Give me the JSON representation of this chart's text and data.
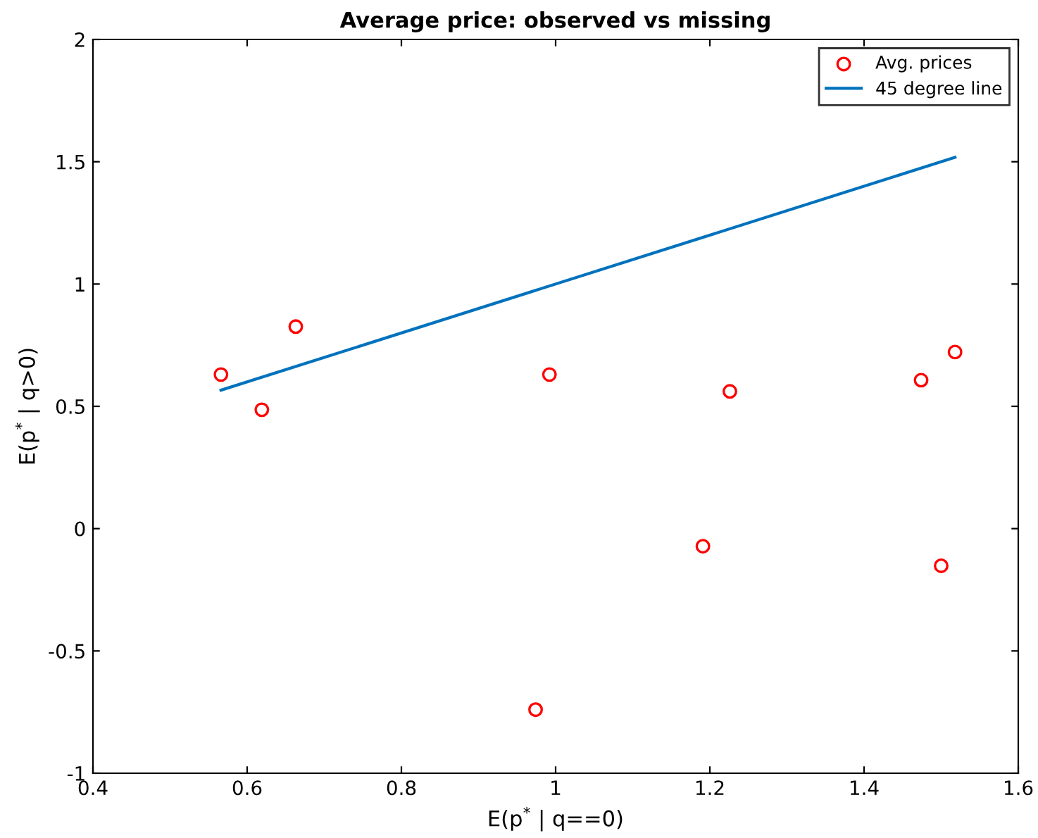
{
  "chart_data": {
    "type": "scatter",
    "title": "Average price: observed vs missing",
    "xlabel": "E(p$^{*}$ | q==0)",
    "ylabel": "E(p$^{*}$ | q>0)",
    "series": [
      {
        "name": "Avg. prices",
        "color": "#ff0000",
        "marker": "circle",
        "x": [
          0.566,
          0.619,
          0.663,
          0.992,
          1.226,
          1.474,
          1.518,
          1.191,
          1.5,
          0.974
        ],
        "values": [
          0.63,
          0.486,
          0.826,
          0.63,
          0.561,
          0.607,
          0.722,
          -0.072,
          -0.152,
          -0.74
        ]
      },
      {
        "name": "45 degree line",
        "type": "line",
        "color": "#0072bd",
        "x": [
          0.566,
          1.518
        ],
        "values": [
          0.566,
          1.518
        ]
      }
    ],
    "xlim": [
      0.4,
      1.6
    ],
    "xticks": [
      0.4,
      0.6,
      0.8,
      1,
      1.2,
      1.4,
      1.6
    ],
    "ylim": [
      -1,
      2
    ],
    "yticks": [
      -1,
      -0.5,
      0,
      0.5,
      1,
      1.5,
      2
    ],
    "grid": false,
    "legend": "top right"
  }
}
